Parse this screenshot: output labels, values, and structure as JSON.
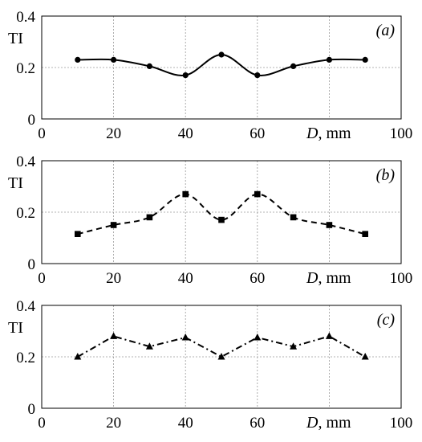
{
  "chart_data": [
    {
      "type": "line",
      "panel_label": "(a)",
      "ylabel": "TI",
      "xlabel_var": "D",
      "xlabel_unit": ", mm",
      "xlim": [
        0,
        100
      ],
      "ylim": [
        0,
        0.4
      ],
      "xticks": [
        "0",
        "20",
        "40",
        "60",
        "100"
      ],
      "yticks": [
        "0",
        "0.2",
        "0.4"
      ],
      "grid": true,
      "style": "solid",
      "marker": "circle",
      "smooth": true,
      "x": [
        10,
        20,
        30,
        40,
        50,
        60,
        70,
        80,
        90
      ],
      "y": [
        0.23,
        0.23,
        0.205,
        0.17,
        0.25,
        0.17,
        0.205,
        0.23,
        0.23
      ]
    },
    {
      "type": "line",
      "panel_label": "(b)",
      "ylabel": "TI",
      "xlabel_var": "D",
      "xlabel_unit": ", mm",
      "xlim": [
        0,
        100
      ],
      "ylim": [
        0,
        0.4
      ],
      "xticks": [
        "0",
        "20",
        "40",
        "60",
        "100"
      ],
      "yticks": [
        "0",
        "0.2",
        "0.4"
      ],
      "grid": true,
      "style": "dashed",
      "marker": "square",
      "smooth": true,
      "x": [
        10,
        20,
        30,
        40,
        50,
        60,
        70,
        80,
        90
      ],
      "y": [
        0.115,
        0.15,
        0.18,
        0.27,
        0.17,
        0.27,
        0.18,
        0.15,
        0.115
      ]
    },
    {
      "type": "line",
      "panel_label": "(c)",
      "ylabel": "TI",
      "xlabel_var": "D",
      "xlabel_unit": ", mm",
      "xlim": [
        0,
        100
      ],
      "ylim": [
        0,
        0.4
      ],
      "xticks": [
        "0",
        "20",
        "40",
        "60",
        "100"
      ],
      "yticks": [
        "0",
        "0.2",
        "0.4"
      ],
      "grid": true,
      "style": "dash-dot",
      "marker": "triangle",
      "smooth": false,
      "x": [
        10,
        20,
        30,
        40,
        50,
        60,
        70,
        80,
        90
      ],
      "y": [
        0.2,
        0.28,
        0.24,
        0.275,
        0.2,
        0.275,
        0.24,
        0.28,
        0.2
      ]
    }
  ]
}
